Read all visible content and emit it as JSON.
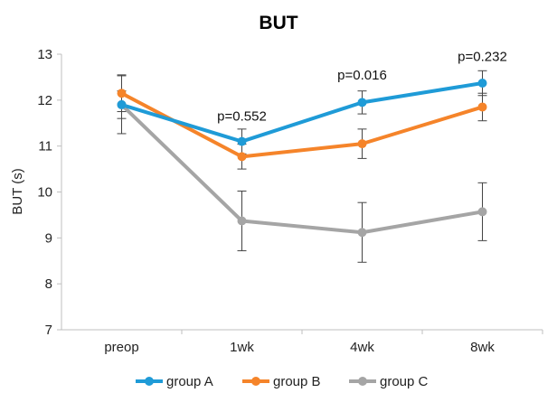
{
  "chart_data": {
    "type": "line",
    "title": "BUT",
    "xlabel": "",
    "ylabel": "BUT (s)",
    "ylim": [
      7,
      13
    ],
    "yticks": [
      7,
      8,
      9,
      10,
      11,
      12,
      13
    ],
    "categories": [
      "preop",
      "1wk",
      "4wk",
      "8wk"
    ],
    "grid": false,
    "legend_position": "bottom",
    "series": [
      {
        "name": "group A",
        "color": "#1f9bd7",
        "values": [
          11.9,
          11.1,
          11.95,
          12.37
        ],
        "error": [
          0.3,
          0.27,
          0.25,
          0.27
        ]
      },
      {
        "name": "group B",
        "color": "#f5842a",
        "values": [
          12.15,
          10.77,
          11.05,
          11.85
        ],
        "error": [
          0.4,
          0.27,
          0.32,
          0.3
        ]
      },
      {
        "name": "group C",
        "color": "#a5a5a5",
        "values": [
          11.9,
          9.37,
          9.12,
          9.57
        ],
        "error": [
          0.63,
          0.65,
          0.65,
          0.63
        ]
      }
    ],
    "annotations": [
      {
        "text": "p=0.552",
        "category": "1wk",
        "y": 11.55
      },
      {
        "text": "p=0.016",
        "category": "4wk",
        "y": 12.45
      },
      {
        "text": "p=0.232",
        "category": "8wk",
        "y": 12.85
      }
    ]
  }
}
